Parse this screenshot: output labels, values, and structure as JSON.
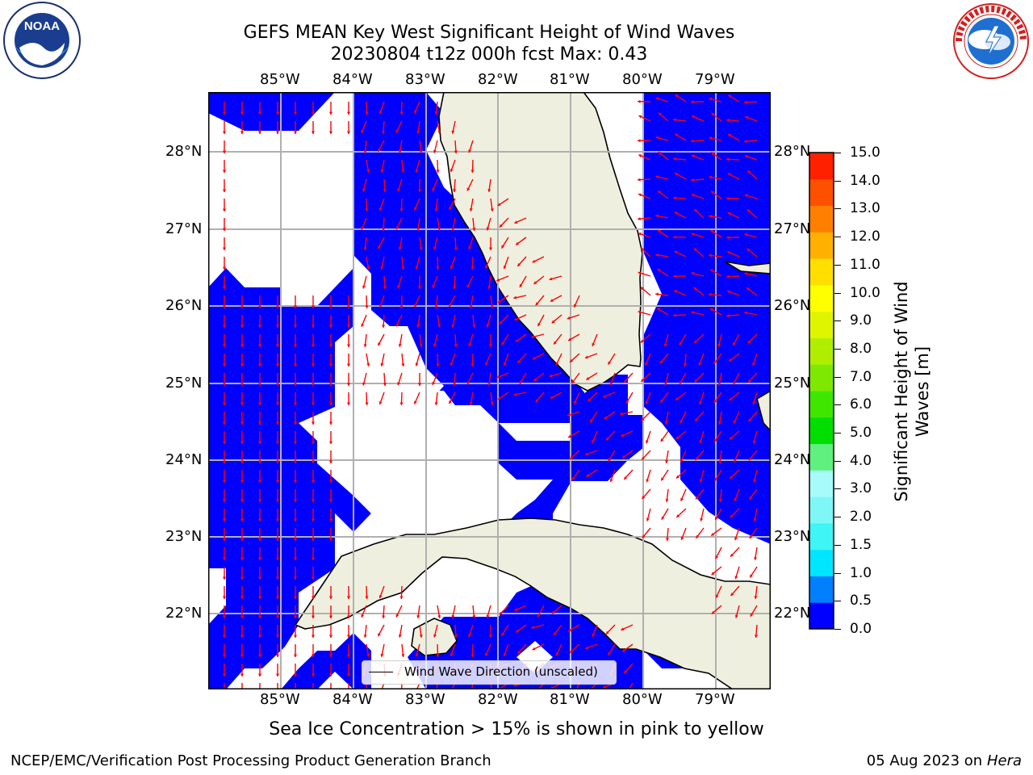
{
  "header": {
    "title_line1": "GEFS MEAN Key West Significant Height of Wind Waves",
    "title_line2": "20230804 t12z 000h fcst   Max: 0.43"
  },
  "logos": {
    "left": {
      "name": "NOAA",
      "ring_text": "NATIONAL OCEANIC AND ATMOSPHERIC ADMINISTRATION",
      "bottom_text": "U.S. DEPARTMENT OF COMMERCE"
    },
    "right": {
      "ring_text": "NATIONAL WEATHER SERVICE"
    }
  },
  "map": {
    "lon_labels": [
      "85°W",
      "84°W",
      "83°W",
      "82°W",
      "81°W",
      "80°W",
      "79°W"
    ],
    "lat_labels": [
      "28°N",
      "27°N",
      "26°N",
      "25°N",
      "24°N",
      "23°N",
      "22°N"
    ],
    "lon_range": [
      -86.0,
      -78.25
    ],
    "lat_range": [
      21.0,
      28.8
    ],
    "ocean_color": "#0000ff",
    "land_color": "#efefdf",
    "arrow_color": "#ff0000",
    "legend_label": "Wind Wave Direction (unscaled)"
  },
  "colorbar": {
    "title": "Significant Height of Wind Waves [m]",
    "tick_labels": [
      "15.0",
      "14.0",
      "13.0",
      "12.0",
      "11.0",
      "10.0",
      "9.0",
      "8.0",
      "7.0",
      "6.0",
      "5.0",
      "4.0",
      "3.0",
      "2.0",
      "1.5",
      "1.0",
      "0.5",
      "0.0"
    ],
    "colors": [
      "#0000ff",
      "#0080ff",
      "#00e6ff",
      "#3ff5f5",
      "#7ff7f7",
      "#a7fbfb",
      "#5ff07f",
      "#00df00",
      "#3fe600",
      "#7fe800",
      "#b0ee00",
      "#dff500",
      "#ffff00",
      "#ffdf00",
      "#ffb000",
      "#ff8000",
      "#ff5000",
      "#ff2000",
      "#ff0000"
    ]
  },
  "footer": {
    "sea_ice_note": "Sea Ice Concentration > 15% is shown in pink to yellow",
    "left": "NCEP/EMC/Verification Post Processing Product Generation Branch",
    "right_date": "05 Aug 2023 on",
    "right_machine": "Hera"
  }
}
